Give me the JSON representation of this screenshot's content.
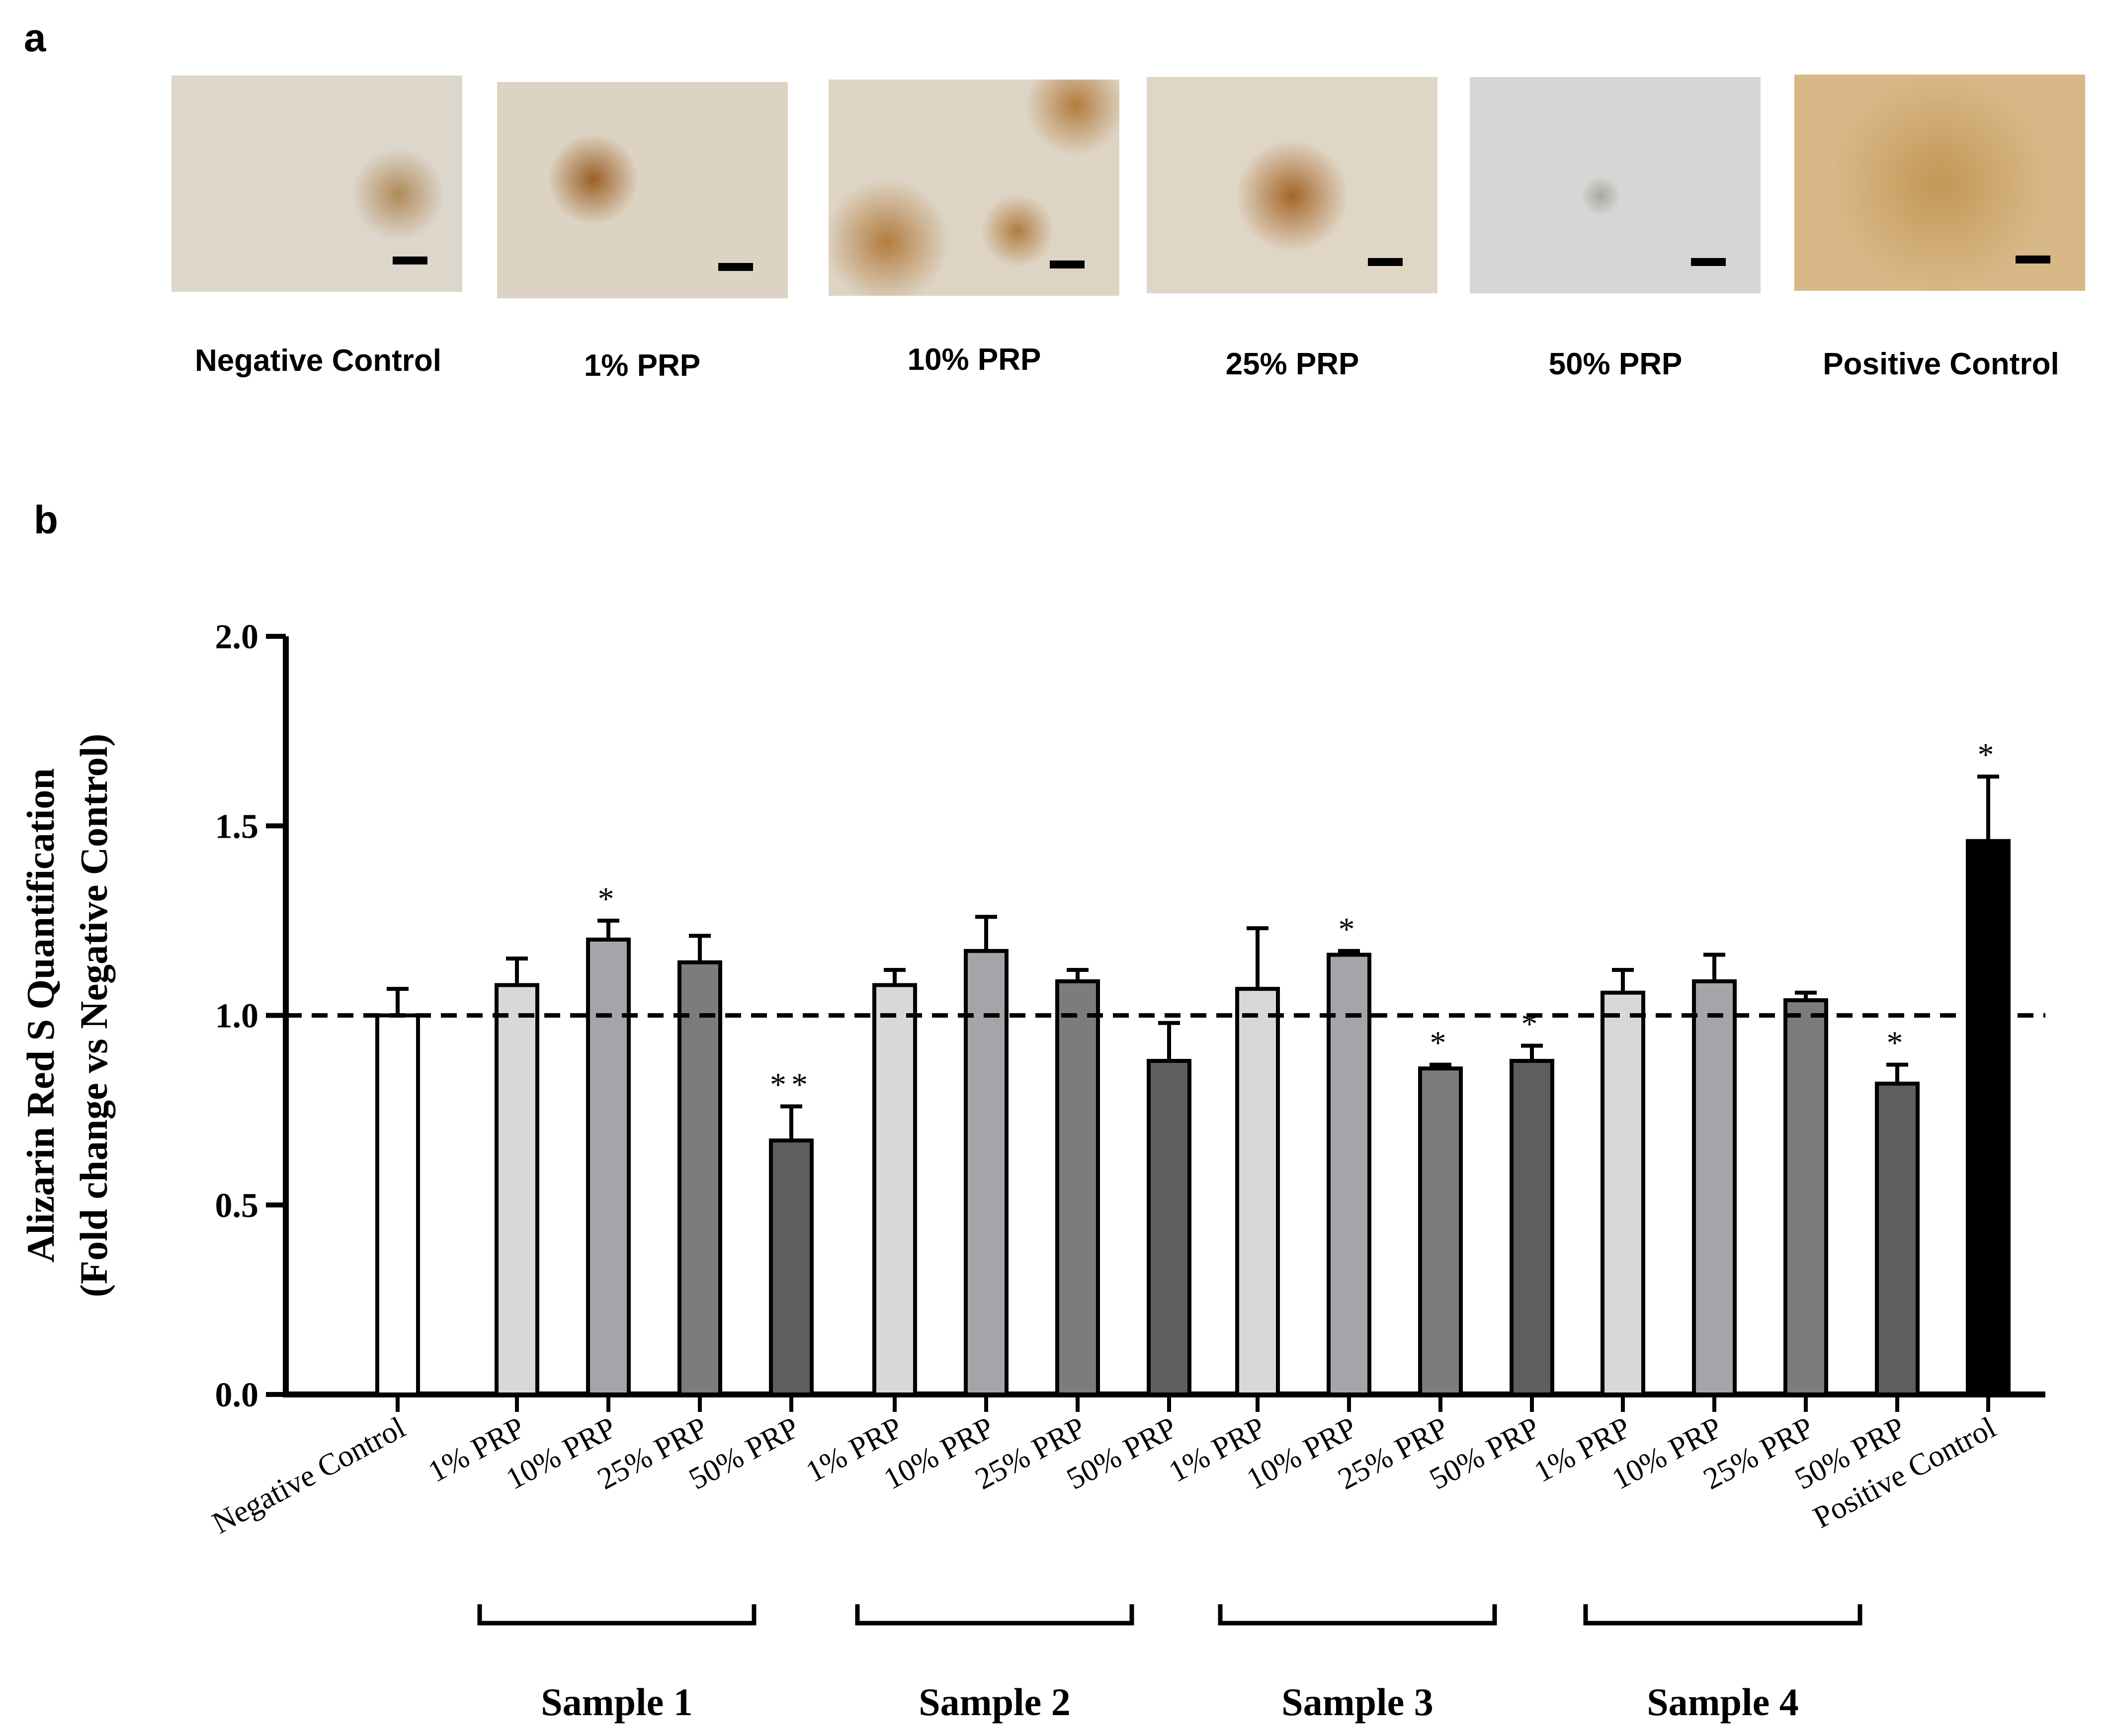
{
  "panel_a": {
    "letter": "a",
    "images": [
      {
        "label": "Negative Control",
        "tone": "#ddd6cb",
        "spot": "#b08a5a"
      },
      {
        "label": "1% PRP",
        "tone": "#ddd3c2",
        "spot": "#9a5f25"
      },
      {
        "label": "10% PRP",
        "tone": "#ddd4c4",
        "spot": "#b27c3e"
      },
      {
        "label": "25% PRP",
        "tone": "#e0d6c5",
        "spot": "#a5652a"
      },
      {
        "label": "50% PRP",
        "tone": "#d6d6d4",
        "spot": "#a9a7a0"
      },
      {
        "label": "Positive Control",
        "tone": "#d8b887",
        "spot": "#c39757"
      }
    ]
  },
  "panel_b": {
    "letter": "b"
  },
  "chart_data": {
    "type": "bar",
    "title": "",
    "ylabel_line1": "Alizarin Red S Quantification",
    "ylabel_line2": "(Fold change vs Negative Control)",
    "ylim": [
      0,
      2.0
    ],
    "yticks": [
      "0.0",
      "0.5",
      "1.0",
      "1.5",
      "2.0"
    ],
    "reference_line": 1.0,
    "bars": [
      {
        "label": "Negative Control",
        "value": 1.0,
        "error": 0.07,
        "sig": "",
        "color": "#ffffff"
      },
      {
        "label": "1% PRP",
        "value": 1.08,
        "error": 0.07,
        "sig": "",
        "color": "#d8d8d8"
      },
      {
        "label": "10% PRP",
        "value": 1.2,
        "error": 0.05,
        "sig": "*",
        "color": "#a5a5a9"
      },
      {
        "label": "25% PRP",
        "value": 1.14,
        "error": 0.07,
        "sig": "",
        "color": "#7c7c7c"
      },
      {
        "label": "50% PRP",
        "value": 0.67,
        "error": 0.09,
        "sig": "**",
        "color": "#5e5e5e"
      },
      {
        "label": "1% PRP",
        "value": 1.08,
        "error": 0.04,
        "sig": "",
        "color": "#d8d8d8"
      },
      {
        "label": "10% PRP",
        "value": 1.17,
        "error": 0.09,
        "sig": "",
        "color": "#a5a5a9"
      },
      {
        "label": "25% PRP",
        "value": 1.09,
        "error": 0.03,
        "sig": "",
        "color": "#7c7c7c"
      },
      {
        "label": "50% PRP",
        "value": 0.88,
        "error": 0.1,
        "sig": "",
        "color": "#5e5e5e"
      },
      {
        "label": "1% PRP",
        "value": 1.07,
        "error": 0.16,
        "sig": "",
        "color": "#d8d8d8"
      },
      {
        "label": "10% PRP",
        "value": 1.16,
        "error": 0.01,
        "sig": "*",
        "color": "#a5a5a9"
      },
      {
        "label": "25% PRP",
        "value": 0.86,
        "error": 0.01,
        "sig": "*",
        "color": "#7c7c7c"
      },
      {
        "label": "50% PRP",
        "value": 0.88,
        "error": 0.04,
        "sig": "*",
        "color": "#5e5e5e"
      },
      {
        "label": "1% PRP",
        "value": 1.06,
        "error": 0.06,
        "sig": "",
        "color": "#d8d8d8"
      },
      {
        "label": "10% PRP",
        "value": 1.09,
        "error": 0.07,
        "sig": "",
        "color": "#a5a5a9"
      },
      {
        "label": "25% PRP",
        "value": 1.04,
        "error": 0.02,
        "sig": "",
        "color": "#7c7c7c"
      },
      {
        "label": "50% PRP",
        "value": 0.82,
        "error": 0.05,
        "sig": "*",
        "color": "#5e5e5e"
      },
      {
        "label": "Positive Control",
        "value": 1.46,
        "error": 0.17,
        "sig": "*",
        "color": "#000000"
      }
    ],
    "groups": [
      {
        "label": "Sample 1",
        "from": 1,
        "to": 4
      },
      {
        "label": "Sample 2",
        "from": 5,
        "to": 8
      },
      {
        "label": "Sample 3",
        "from": 9,
        "to": 12
      },
      {
        "label": "Sample 4",
        "from": 13,
        "to": 16
      }
    ]
  }
}
